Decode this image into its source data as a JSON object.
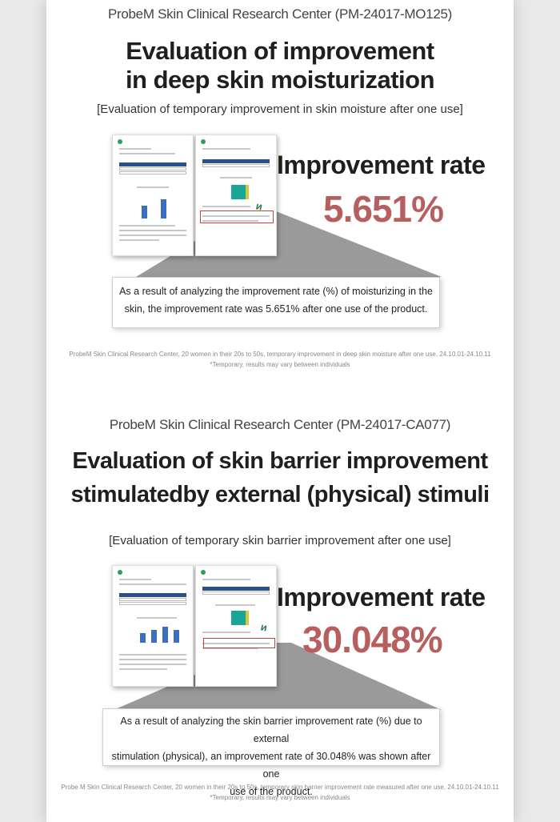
{
  "section1": {
    "subtitle": "ProbeM Skin Clinical Research Center (PM-24017-MO125)",
    "title_line1": "Evaluation of improvement",
    "title_line2": "in deep skin moisturization",
    "tagline": "[Evaluation of temporary improvement in skin moisture after one use]",
    "rate_label": "Improvement rate",
    "rate_value": "5.651%",
    "callout_line1": "As a result of analyzing the improvement rate (%) of moisturizing in the",
    "callout_line2": "skin, the improvement rate was 5.651% after one use of the product.",
    "source": "ProbeM Skin Clinical Research Center, 20 women in their 20s to 50s, temporary improvement in deep skin moisture after one use, 24.10.01-24.10.11",
    "note": "*Temporary, results may vary between individuals"
  },
  "section2": {
    "subtitle": "ProbeM Skin Clinical Research Center (PM-24017-CA077)",
    "title_line1": "Evaluation of skin barrier improvement",
    "title_line2": "stimulatedby external (physical) stimuli",
    "tagline": "[Evaluation of temporary skin barrier improvement after one use]",
    "rate_label": "Improvement rate",
    "rate_value": "30.048%",
    "callout_line1": "As a result of analyzing the skin barrier improvement rate (%) due to external",
    "callout_line2": "stimulation (physical), an improvement rate of 30.048% was shown after one",
    "callout_line3": "use of the product.",
    "source": "Probe M Skin Clinical Research Center, 20 women in their 20s to 50s, temporary skin barrier improvement rate measured after one use, 24.10.01-24.10.11",
    "note": "*Temporary, results may vary between individuals"
  },
  "colors": {
    "rate": "#b75f5f",
    "table_header": "#2a4f8f",
    "highlight_box": "#c0453a"
  }
}
